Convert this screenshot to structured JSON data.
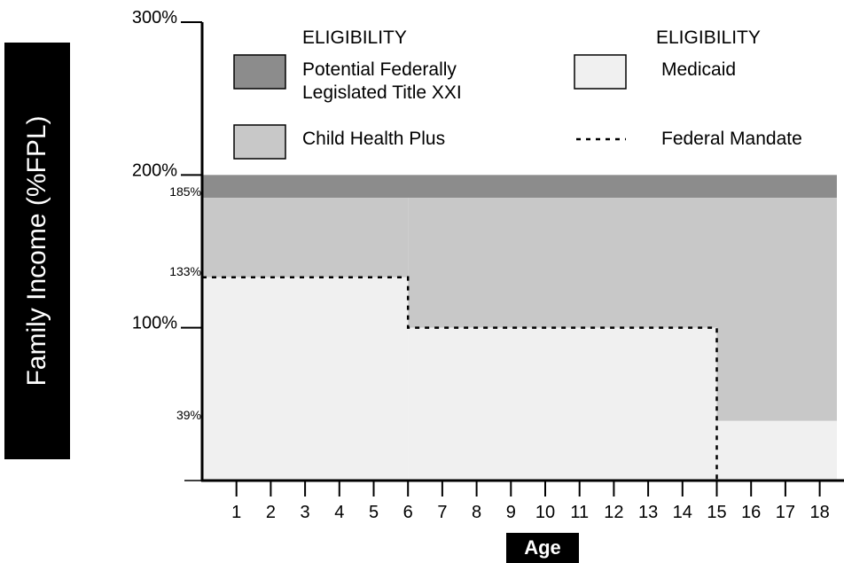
{
  "chart_data": {
    "type": "area",
    "title": "",
    "xlabel": "Age",
    "ylabel": "Family Income (%FPL)",
    "xlim": [
      0,
      18.5
    ],
    "ylim": [
      0,
      300
    ],
    "x_ticks": [
      1,
      2,
      3,
      4,
      5,
      6,
      7,
      8,
      9,
      10,
      11,
      12,
      13,
      14,
      15,
      16,
      17,
      18
    ],
    "y_major_ticks": [
      {
        "value": 100,
        "label": "100%"
      },
      {
        "value": 200,
        "label": "200%"
      },
      {
        "value": 300,
        "label": "300%"
      }
    ],
    "y_minor_labels": [
      {
        "value": 39,
        "label": "39%"
      },
      {
        "value": 133,
        "label": "133%"
      },
      {
        "value": 185,
        "label": "185%"
      }
    ],
    "bands": [
      {
        "name": "Potential Federally Legislated Title XXI",
        "color": "#8c8c8c",
        "from": 185,
        "to": 200,
        "x_start": 0,
        "x_end": 18.5
      },
      {
        "name": "Child Health Plus",
        "color": "#c8c8c8",
        "segments": [
          {
            "x_start": 0,
            "x_end": 6,
            "from": 133,
            "to": 185
          },
          {
            "x_start": 6,
            "x_end": 15,
            "from": 100,
            "to": 185
          },
          {
            "x_start": 15,
            "x_end": 18.5,
            "from": 39,
            "to": 185
          }
        ]
      },
      {
        "name": "Medicaid",
        "color": "#f0f0f0",
        "segments": [
          {
            "x_start": 0,
            "x_end": 6,
            "from": 0,
            "to": 133
          },
          {
            "x_start": 6,
            "x_end": 15,
            "from": 0,
            "to": 100
          },
          {
            "x_start": 15,
            "x_end": 18.5,
            "from": 0,
            "to": 39
          }
        ]
      }
    ],
    "federal_mandate_line": {
      "name": "Federal Mandate",
      "style": "dashed",
      "points": [
        [
          0,
          133
        ],
        [
          6,
          133
        ],
        [
          6,
          100
        ],
        [
          15,
          100
        ],
        [
          15,
          0
        ]
      ]
    },
    "legend": {
      "left_header": "ELIGIBILITY",
      "right_header": "ELIGIBILITY",
      "left_items": [
        {
          "label_lines": [
            "Potential Federally",
            "Legislated Title XXI"
          ],
          "color": "#8c8c8c"
        },
        {
          "label_lines": [
            "Child Health Plus"
          ],
          "color": "#c8c8c8"
        }
      ],
      "right_items": [
        {
          "label_lines": [
            "Medicaid"
          ],
          "color": "#f0f0f0"
        },
        {
          "label_lines": [
            "Federal Mandate"
          ],
          "style": "dashed"
        }
      ]
    }
  }
}
